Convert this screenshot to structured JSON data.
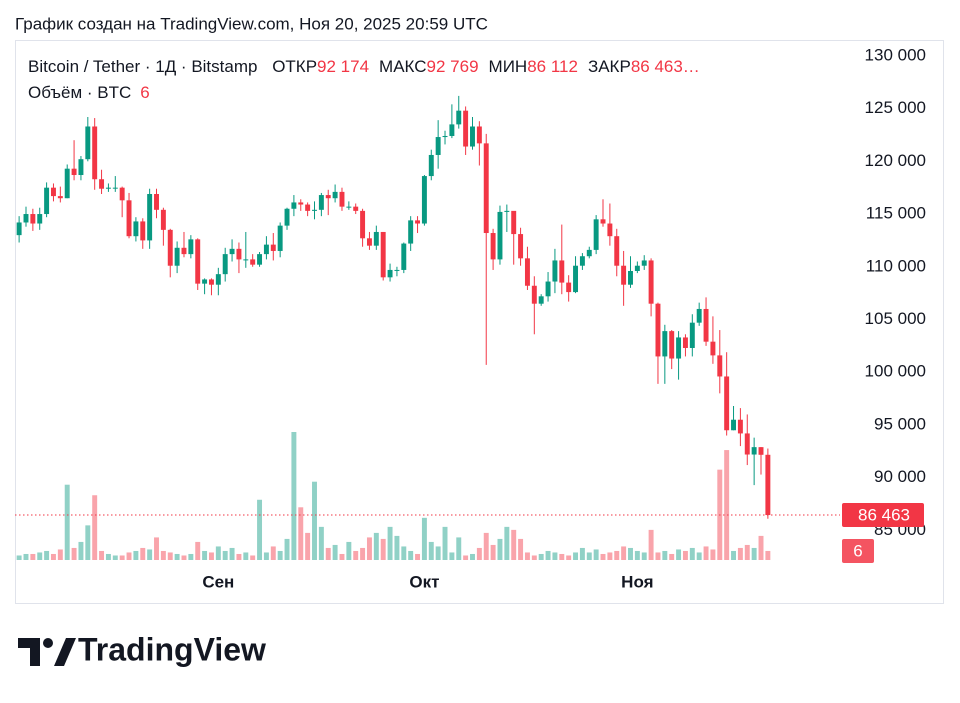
{
  "header": {
    "caption": "График создан на TradingView.com, Ноя 20, 2025 20:59 UTC"
  },
  "chart_data": {
    "type": "candlestick",
    "symbol": "Bitcoin / Tether · 1Д · Bitstamp",
    "legend_fields": [
      {
        "name": "ОТКР",
        "value": 92174,
        "label": "92 174"
      },
      {
        "name": "МАКС",
        "value": 92769,
        "label": "92 769"
      },
      {
        "name": "МИН",
        "value": 86112,
        "label": "86 112"
      },
      {
        "name": "ЗАКР",
        "value": 86463,
        "label": "86 463…"
      }
    ],
    "volume_title": "Объём · BTC",
    "up_color": "#089981",
    "down_color": "#f23645",
    "x": [
      0,
      1,
      2,
      3,
      4,
      5,
      6,
      7,
      8,
      9,
      10,
      11,
      12,
      13,
      14,
      15,
      16,
      17,
      18,
      19,
      20,
      21,
      22,
      23,
      24,
      25,
      26,
      27,
      28,
      29,
      30,
      31,
      32,
      33,
      34,
      35,
      36,
      37,
      38,
      39,
      40,
      41,
      42,
      43,
      44,
      45,
      46,
      47,
      48,
      49,
      50,
      51,
      52,
      53,
      54,
      55,
      56,
      57,
      58,
      59,
      60,
      61,
      62,
      63,
      64,
      65,
      66,
      67,
      68,
      69,
      70,
      71,
      72,
      73,
      74,
      75,
      76,
      77,
      78,
      79,
      80,
      81,
      82,
      83,
      84,
      85,
      86,
      87,
      88,
      89,
      90,
      91,
      92,
      93,
      94,
      95,
      96,
      97,
      98,
      99,
      100,
      101,
      102,
      103,
      104,
      105,
      106,
      107,
      108,
      109
    ],
    "open": [
      113000,
      114200,
      115000,
      114100,
      115000,
      117500,
      116700,
      116500,
      119300,
      118700,
      120200,
      123300,
      118300,
      117400,
      117500,
      117500,
      116300,
      112900,
      114300,
      112500,
      116900,
      115400,
      113500,
      110100,
      111800,
      111200,
      112600,
      108400,
      108800,
      108300,
      109300,
      111200,
      111700,
      110700,
      110700,
      110200,
      111200,
      112100,
      111500,
      113900,
      115500,
      116100,
      115900,
      115300,
      115400,
      116800,
      116500,
      117100,
      115700,
      115700,
      115300,
      112700,
      112000,
      113300,
      109000,
      109700,
      109700,
      112200,
      114400,
      114100,
      118600,
      120600,
      122300,
      122400,
      123500,
      124800,
      121400,
      123300,
      121700,
      113200,
      110700,
      115200,
      115300,
      113100,
      110800,
      108200,
      106500,
      107200,
      108600,
      110600,
      108500,
      107600,
      110100,
      111000,
      111600,
      114500,
      114100,
      112900,
      110100,
      108300,
      109600,
      110100,
      110600,
      106500,
      101500,
      103900,
      101300,
      103300,
      102300,
      104700,
      106000,
      102900,
      101600,
      99600,
      94500,
      95500,
      94200,
      92200,
      92900,
      92174
    ],
    "high": [
      114800,
      115700,
      115500,
      115600,
      118000,
      117900,
      117600,
      119700,
      122000,
      120500,
      124200,
      124100,
      119200,
      117900,
      118600,
      117600,
      117000,
      114700,
      114600,
      117400,
      117400,
      115600,
      113600,
      112400,
      113300,
      113000,
      112700,
      108900,
      108900,
      109900,
      111800,
      112600,
      112300,
      113300,
      111200,
      111400,
      112900,
      113200,
      114200,
      115600,
      116800,
      116400,
      116100,
      116200,
      117000,
      117300,
      117800,
      117500,
      116200,
      116000,
      115500,
      113300,
      113900,
      113300,
      110300,
      110000,
      112300,
      114800,
      114800,
      118700,
      121100,
      123900,
      122900,
      125400,
      126200,
      125200,
      124200,
      123800,
      122600,
      113600,
      115800,
      115900,
      115100,
      113700,
      111900,
      109100,
      107400,
      109500,
      111700,
      114000,
      109200,
      111000,
      111300,
      111900,
      114900,
      116400,
      116000,
      113600,
      111500,
      111000,
      110500,
      111100,
      110800,
      106600,
      104500,
      104000,
      103900,
      103600,
      105500,
      106600,
      107100,
      105300,
      104000,
      101900,
      96800,
      96600,
      96000,
      93800,
      92900,
      92769
    ],
    "low": [
      112300,
      113800,
      113400,
      113500,
      114700,
      116200,
      116100,
      116500,
      118200,
      118200,
      120000,
      117300,
      116900,
      117100,
      117100,
      114700,
      112700,
      112400,
      111700,
      111700,
      114600,
      112000,
      109000,
      109400,
      110900,
      110800,
      107800,
      107400,
      107300,
      107300,
      108600,
      110500,
      109400,
      109900,
      110000,
      110000,
      110700,
      110600,
      110900,
      113500,
      114800,
      115300,
      114800,
      114500,
      114800,
      114900,
      116100,
      115300,
      115400,
      115000,
      111900,
      111600,
      111600,
      108700,
      108600,
      109100,
      109400,
      111500,
      113200,
      113900,
      118200,
      119300,
      121600,
      122200,
      123100,
      120600,
      121100,
      119600,
      100700,
      109700,
      110200,
      113300,
      110200,
      110100,
      107800,
      103600,
      106300,
      106700,
      107500,
      107400,
      106700,
      107500,
      109700,
      110800,
      111200,
      113800,
      112000,
      109100,
      106300,
      108000,
      109400,
      109700,
      105300,
      98900,
      98900,
      100300,
      99300,
      101500,
      101500,
      104400,
      102500,
      100800,
      98000,
      94000,
      94500,
      93000,
      91200,
      89300,
      90300,
      86112
    ],
    "close": [
      114200,
      115000,
      114100,
      115000,
      117500,
      116700,
      116500,
      119300,
      118700,
      120200,
      123300,
      118300,
      117400,
      117500,
      117500,
      116300,
      112900,
      114300,
      112500,
      116900,
      115400,
      113500,
      110100,
      111800,
      111200,
      112600,
      108400,
      108800,
      108300,
      109300,
      111200,
      111700,
      110700,
      110700,
      110200,
      111200,
      112100,
      111500,
      113900,
      115500,
      116100,
      115900,
      115300,
      115400,
      116800,
      116500,
      117100,
      115700,
      115700,
      115300,
      112700,
      112000,
      113300,
      109000,
      109700,
      109700,
      112200,
      114400,
      114100,
      118600,
      120600,
      122300,
      122400,
      123500,
      124800,
      121400,
      123300,
      121700,
      113200,
      110700,
      115200,
      115300,
      113100,
      110800,
      108200,
      106500,
      107200,
      108600,
      110600,
      108500,
      107600,
      110100,
      111000,
      111600,
      114500,
      114100,
      112900,
      110100,
      108300,
      109600,
      110100,
      110600,
      106500,
      101500,
      103900,
      101300,
      103300,
      102300,
      104700,
      106000,
      102900,
      101600,
      99600,
      94500,
      95500,
      94200,
      92200,
      92900,
      92174,
      86463
    ],
    "volume": [
      3,
      4,
      4,
      5,
      6,
      4,
      7,
      50,
      8,
      12,
      23,
      43,
      6,
      4,
      3,
      3,
      5,
      6,
      8,
      7,
      15,
      6,
      5,
      4,
      3,
      4,
      12,
      6,
      5,
      9,
      6,
      8,
      4,
      5,
      3,
      40,
      5,
      9,
      6,
      14,
      85,
      35,
      18,
      52,
      22,
      8,
      10,
      4,
      12,
      6,
      8,
      15,
      18,
      14,
      22,
      16,
      9,
      6,
      4,
      28,
      12,
      9,
      22,
      5,
      15,
      3,
      4,
      8,
      18,
      10,
      14,
      22,
      20,
      14,
      5,
      3,
      4,
      6,
      5,
      4,
      3,
      5,
      8,
      5,
      7,
      4,
      5,
      6,
      9,
      8,
      6,
      5,
      20,
      5,
      6,
      4,
      7,
      6,
      8,
      5,
      9,
      7,
      60,
      73,
      6,
      8,
      10,
      8,
      16,
      6
    ],
    "xlim": [
      -0.6,
      119.5
    ],
    "xticks": [
      {
        "value": 29,
        "label": "Сен"
      },
      {
        "value": 59,
        "label": "Окт"
      },
      {
        "value": 90,
        "label": "Ноя"
      }
    ],
    "ylim": [
      82200,
      131500
    ],
    "yticks": [
      {
        "value": 85000,
        "label": "85 000"
      },
      {
        "value": 90000,
        "label": "90 000"
      },
      {
        "value": 95000,
        "label": "95 000"
      },
      {
        "value": 100000,
        "label": "100 000"
      },
      {
        "value": 105000,
        "label": "105 000"
      },
      {
        "value": 110000,
        "label": "110 000"
      },
      {
        "value": 115000,
        "label": "115 000"
      },
      {
        "value": 120000,
        "label": "120 000"
      },
      {
        "value": 125000,
        "label": "125 000"
      },
      {
        "value": 130000,
        "label": "130 000"
      }
    ],
    "price_tag": {
      "value": 86463,
      "label": "86 463"
    },
    "grid": false
  },
  "footer": {
    "brand": "TradingView"
  }
}
